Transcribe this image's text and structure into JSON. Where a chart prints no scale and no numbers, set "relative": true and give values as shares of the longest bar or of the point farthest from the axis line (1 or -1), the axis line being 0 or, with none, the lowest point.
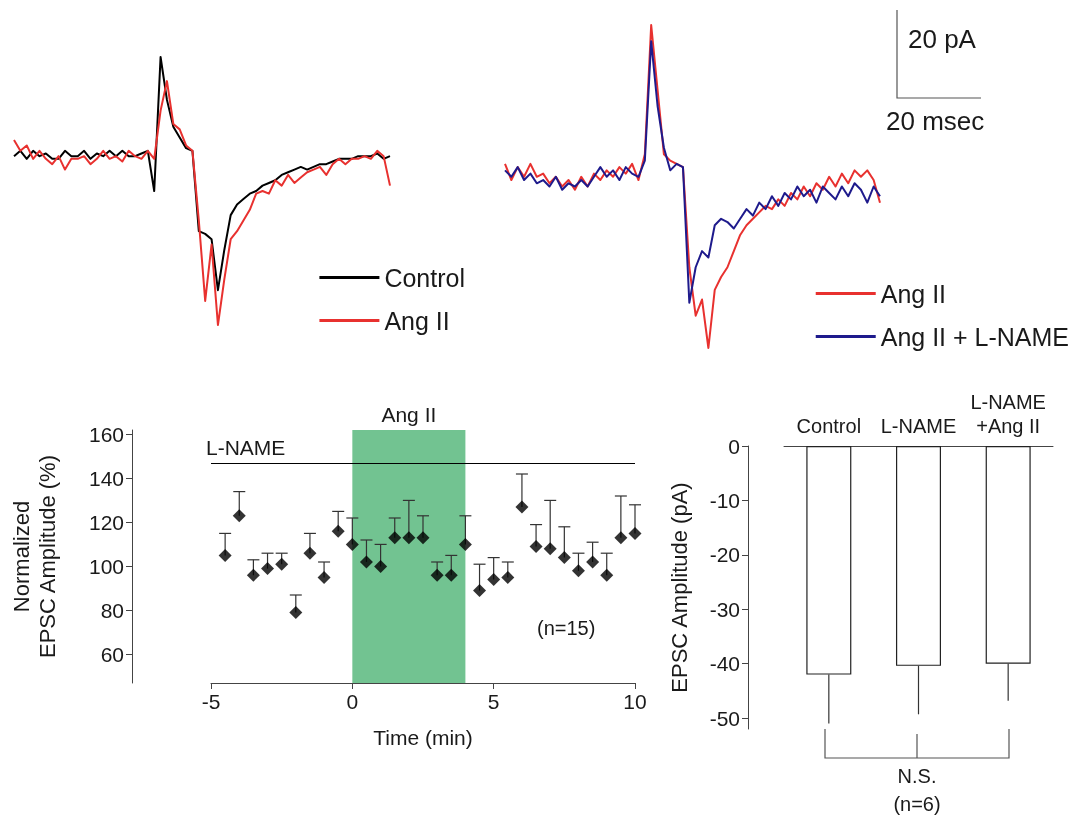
{
  "chart_data": [
    {
      "type": "line",
      "relative": true,
      "marker": "none",
      "legend": "bottom right",
      "categories": [
        null,
        null,
        null,
        null,
        null,
        null,
        null,
        null,
        null,
        null,
        null,
        null,
        null,
        null,
        null,
        null,
        null,
        null,
        null,
        null,
        null,
        null,
        null,
        null,
        null,
        null,
        null,
        null,
        null,
        null,
        null,
        null,
        null,
        null,
        null,
        null,
        null,
        null,
        null,
        null,
        null,
        null,
        null,
        null,
        null,
        null,
        null,
        null,
        null,
        null,
        null,
        null,
        null,
        null,
        null,
        null,
        null,
        null,
        null,
        null
      ],
      "series": [
        {
          "name": "Control",
          "color": "#000000",
          "values": [
            0.63,
            0.65,
            0.62,
            0.65,
            0.63,
            0.64,
            0.62,
            0.62,
            0.65,
            0.63,
            0.63,
            0.65,
            0.62,
            0.64,
            0.63,
            0.65,
            0.63,
            0.65,
            0.63,
            0.63,
            0.64,
            0.65,
            0.5,
            1,
            0.84,
            0.74,
            0.7,
            0.66,
            0.65,
            0.35,
            0.34,
            0.32,
            0.13,
            0.28,
            0.41,
            0.45,
            0.47,
            0.49,
            0.5,
            0.52,
            0.53,
            0.54,
            0.56,
            0.57,
            0.58,
            0.59,
            0.58,
            0.59,
            0.6,
            0.6,
            0.61,
            0.62,
            0.62,
            0.62,
            0.63,
            0.63,
            0.63,
            0.64,
            0.62,
            0.63
          ]
        },
        {
          "name": "Ang II",
          "color": "#e8312f",
          "values": [
            0.69,
            0.65,
            0.67,
            0.62,
            0.65,
            0.62,
            0.6,
            0.63,
            0.58,
            0.62,
            0.62,
            0.63,
            0.6,
            0.62,
            0.65,
            0.62,
            0.63,
            0.61,
            0.65,
            0.63,
            0.62,
            0.65,
            0.62,
            0.8,
            0.91,
            0.75,
            0.73,
            0.67,
            0.65,
            0.39,
            0.09,
            0.3,
            0,
            0.17,
            0.32,
            0.35,
            0.39,
            0.43,
            0.49,
            0.5,
            0.49,
            0.54,
            0.52,
            0.56,
            0.53,
            0.55,
            0.57,
            0.58,
            0.59,
            0.56,
            0.6,
            0.62,
            0.6,
            0.62,
            0.62,
            0.63,
            0.62,
            0.65,
            0.63,
            0.52
          ]
        }
      ]
    },
    {
      "type": "line",
      "relative": true,
      "marker": "none",
      "legend": "bottom right",
      "annotations": [
        "20 pA",
        "20 msec"
      ],
      "categories": [
        null,
        null,
        null,
        null,
        null,
        null,
        null,
        null,
        null,
        null,
        null,
        null,
        null,
        null,
        null,
        null,
        null,
        null,
        null,
        null,
        null,
        null,
        null,
        null,
        null,
        null,
        null,
        null,
        null,
        null,
        null,
        null,
        null,
        null,
        null,
        null,
        null,
        null,
        null,
        null,
        null,
        null,
        null,
        null,
        null,
        null,
        null,
        null,
        null,
        null,
        null,
        null,
        null,
        null,
        null,
        null,
        null,
        null,
        null,
        null
      ],
      "series": [
        {
          "name": "Ang II",
          "color": "#e8312f",
          "values": [
            0.57,
            0.52,
            0.56,
            0.53,
            0.57,
            0.53,
            0.54,
            0.51,
            0.53,
            0.5,
            0.52,
            0.49,
            0.53,
            0.5,
            0.54,
            0.52,
            0.55,
            0.53,
            0.56,
            0.54,
            0.57,
            0.52,
            0.6,
            1,
            0.8,
            0.6,
            0.58,
            0.57,
            0.56,
            0.25,
            0.1,
            0.15,
            0,
            0.18,
            0.22,
            0.25,
            0.3,
            0.35,
            0.38,
            0.4,
            0.42,
            0.44,
            0.43,
            0.46,
            0.44,
            0.48,
            0.46,
            0.5,
            0.47,
            0.51,
            0.49,
            0.53,
            0.5,
            0.54,
            0.51,
            0.55,
            0.53,
            0.55,
            0.52,
            0.45
          ]
        },
        {
          "name": "Ang II + L-NAME",
          "color": "#1e1a8c",
          "values": [
            0.55,
            0.53,
            0.56,
            0.52,
            0.54,
            0.51,
            0.52,
            0.5,
            0.53,
            0.49,
            0.51,
            0.5,
            0.52,
            0.5,
            0.53,
            0.56,
            0.53,
            0.55,
            0.52,
            0.56,
            0.54,
            0.53,
            0.58,
            0.95,
            0.75,
            0.62,
            0.55,
            0.57,
            0.56,
            0.14,
            0.25,
            0.3,
            0.28,
            0.38,
            0.4,
            0.39,
            0.37,
            0.4,
            0.43,
            0.41,
            0.45,
            0.43,
            0.47,
            0.44,
            0.48,
            0.46,
            0.5,
            0.47,
            0.49,
            0.45,
            0.5,
            0.48,
            0.46,
            0.5,
            0.47,
            0.51,
            0.49,
            0.45,
            0.5,
            0.47
          ]
        }
      ]
    },
    {
      "type": "scatter",
      "marker": "diamond",
      "color": "#000000",
      "xlabel": "Time (min)",
      "ylabel": "Normalized\nEPSC Amplitude (%)",
      "x": [
        -4.5,
        -4,
        -3.5,
        -3,
        -2.5,
        -2,
        -1.5,
        -1,
        -0.5,
        0,
        0.5,
        1,
        1.5,
        2,
        2.5,
        3,
        3.5,
        4,
        4.5,
        5,
        5.5,
        6,
        6.5,
        7,
        7.5,
        8,
        8.5,
        9,
        9.5,
        10
      ],
      "values": [
        105,
        123,
        96,
        99,
        101,
        79,
        106,
        95,
        116,
        110,
        102,
        100,
        113,
        113,
        113,
        96,
        96,
        110,
        89,
        94,
        95,
        127,
        109,
        108,
        104,
        98,
        102,
        96,
        113,
        115
      ],
      "errors": [
        [
          105,
          115
        ],
        [
          123,
          134
        ],
        [
          96,
          103
        ],
        [
          99,
          106
        ],
        [
          101,
          106
        ],
        [
          79,
          87
        ],
        [
          106,
          115
        ],
        [
          95,
          102
        ],
        [
          116,
          125
        ],
        [
          110,
          122
        ],
        [
          102,
          112
        ],
        [
          100,
          110
        ],
        [
          113,
          122
        ],
        [
          113,
          130
        ],
        [
          113,
          123
        ],
        [
          96,
          102
        ],
        [
          96,
          105
        ],
        [
          110,
          123
        ],
        [
          89,
          101
        ],
        [
          94,
          104
        ],
        [
          95,
          102
        ],
        [
          127,
          142
        ],
        [
          109,
          119
        ],
        [
          108,
          130
        ],
        [
          104,
          118
        ],
        [
          98,
          106
        ],
        [
          102,
          111
        ],
        [
          96,
          106
        ],
        [
          113,
          132
        ],
        [
          115,
          128
        ]
      ],
      "xlim": [
        -5,
        10
      ],
      "xticks": [
        -5,
        0,
        5,
        10
      ],
      "ylim": [
        47,
        162
      ],
      "yticks": [
        60,
        80,
        100,
        120,
        140,
        160
      ],
      "bands": [
        {
          "axis": "x",
          "from": 0,
          "to": 4,
          "label": "Ang II",
          "color": "#72c391"
        }
      ],
      "ref_lines": [
        {
          "axis": "y",
          "value": 147,
          "label": "L-NAME",
          "color": "#000000"
        }
      ],
      "annotations": [
        "(n=15)"
      ]
    },
    {
      "type": "bar",
      "color": "#ffffff",
      "ylabel": "EPSC Amplitude (pA)",
      "categories": [
        "Control",
        "L-NAME",
        "L-NAME\n+Ang II"
      ],
      "values": [
        -42,
        -40.4,
        -40
      ],
      "errors": [
        [
          -51,
          -42
        ],
        [
          -49.3,
          -40.4
        ],
        [
          -46.8,
          -40
        ]
      ],
      "ylim": [
        -52,
        0
      ],
      "yticks": [
        0,
        -10,
        -20,
        -30,
        -40,
        -50
      ],
      "annotations": [
        "N.S.",
        "(n=6)"
      ]
    }
  ]
}
